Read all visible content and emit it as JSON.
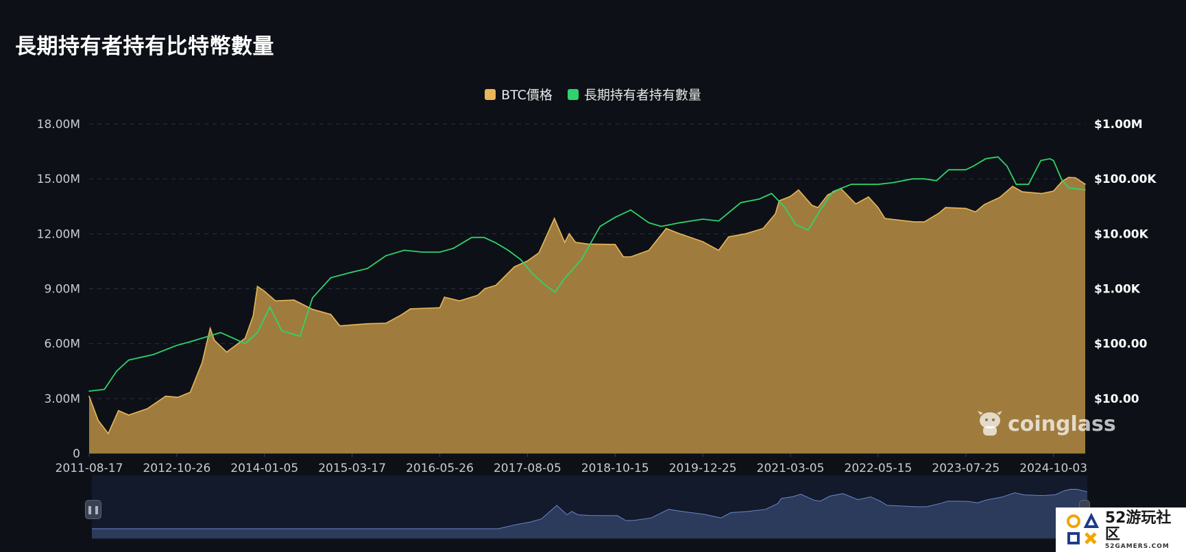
{
  "page": {
    "title": "長期持有者持有比特幣數量"
  },
  "legend": [
    {
      "label": "BTC價格",
      "color": "#e8b75a"
    },
    {
      "label": "長期持有者持有數量",
      "color": "#2fd36b"
    }
  ],
  "watermark": {
    "text": "coinglass",
    "icon": "mascot-icon"
  },
  "badge": {
    "main": "52游玩社区",
    "sub": "52GAMERS.COM",
    "icon": "shapes-logo-icon"
  },
  "chart_data": {
    "type": "area",
    "title": "長期持有者持有比特幣數量",
    "x_tick_labels": [
      "2011-08-17",
      "2012-10-26",
      "2014-01-05",
      "2015-03-17",
      "2016-05-26",
      "2017-08-05",
      "2018-10-15",
      "2019-12-25",
      "2021-03-05",
      "2022-05-15",
      "2023-07-25",
      "2024-10-03"
    ],
    "x_range": [
      "2011-08-17",
      "2025-03-10"
    ],
    "y_left": {
      "ticks": [
        "0",
        "3.00M",
        "6.00M",
        "9.00M",
        "12.00M",
        "15.00M",
        "18.00M"
      ],
      "range": [
        0,
        18000000
      ]
    },
    "y_right": {
      "scale": "log",
      "ticks": [
        "$10.00",
        "$100.00",
        "$1.00K",
        "$10.00K",
        "$100.00K",
        "$1.00M"
      ],
      "range": [
        1,
        1000000
      ]
    },
    "grid": true,
    "legend_position": "top-center",
    "series": [
      {
        "name": "BTC價格",
        "axis": "right",
        "style": "area",
        "color": "#e8b75a",
        "points": [
          [
            "2011-08-17",
            11
          ],
          [
            "2011-10-01",
            4
          ],
          [
            "2011-11-20",
            2.3
          ],
          [
            "2012-01-10",
            6
          ],
          [
            "2012-03-01",
            5
          ],
          [
            "2012-06-01",
            6.5
          ],
          [
            "2012-09-01",
            11
          ],
          [
            "2012-11-01",
            10.5
          ],
          [
            "2013-01-01",
            13
          ],
          [
            "2013-03-01",
            45
          ],
          [
            "2013-04-10",
            190
          ],
          [
            "2013-05-01",
            115
          ],
          [
            "2013-07-01",
            70
          ],
          [
            "2013-10-01",
            125
          ],
          [
            "2013-11-10",
            320
          ],
          [
            "2013-12-01",
            1100
          ],
          [
            "2014-01-05",
            900
          ],
          [
            "2014-03-01",
            600
          ],
          [
            "2014-06-01",
            620
          ],
          [
            "2014-09-01",
            420
          ],
          [
            "2014-12-01",
            340
          ],
          [
            "2015-01-15",
            210
          ],
          [
            "2015-06-01",
            230
          ],
          [
            "2015-09-01",
            235
          ],
          [
            "2015-11-15",
            330
          ],
          [
            "2016-01-01",
            430
          ],
          [
            "2016-05-26",
            450
          ],
          [
            "2016-06-18",
            700
          ],
          [
            "2016-09-01",
            600
          ],
          [
            "2016-12-01",
            760
          ],
          [
            "2017-01-05",
            1000
          ],
          [
            "2017-03-01",
            1150
          ],
          [
            "2017-06-01",
            2500
          ],
          [
            "2017-08-05",
            3200
          ],
          [
            "2017-10-01",
            4500
          ],
          [
            "2017-12-17",
            19000
          ],
          [
            "2018-02-06",
            7000
          ],
          [
            "2018-03-01",
            10000
          ],
          [
            "2018-04-01",
            7000
          ],
          [
            "2018-06-01",
            6500
          ],
          [
            "2018-10-15",
            6400
          ],
          [
            "2018-11-25",
            3800
          ],
          [
            "2019-01-01",
            3800
          ],
          [
            "2019-04-01",
            5000
          ],
          [
            "2019-06-26",
            12500
          ],
          [
            "2019-09-01",
            10000
          ],
          [
            "2019-12-25",
            7200
          ],
          [
            "2020-03-13",
            5000
          ],
          [
            "2020-05-01",
            8800
          ],
          [
            "2020-07-25",
            10000
          ],
          [
            "2020-10-20",
            12500
          ],
          [
            "2020-12-20",
            23000
          ],
          [
            "2021-01-08",
            40000
          ],
          [
            "2021-03-05",
            48000
          ],
          [
            "2021-04-14",
            63000
          ],
          [
            "2021-06-20",
            33000
          ],
          [
            "2021-07-20",
            30000
          ],
          [
            "2021-09-06",
            51000
          ],
          [
            "2021-11-10",
            67000
          ],
          [
            "2022-01-24",
            35000
          ],
          [
            "2022-03-28",
            47000
          ],
          [
            "2022-05-15",
            30000
          ],
          [
            "2022-06-18",
            19000
          ],
          [
            "2022-11-10",
            16500
          ],
          [
            "2022-12-31",
            16500
          ],
          [
            "2023-03-15",
            24000
          ],
          [
            "2023-04-15",
            30000
          ],
          [
            "2023-07-25",
            29000
          ],
          [
            "2023-09-11",
            25000
          ],
          [
            "2023-10-25",
            34000
          ],
          [
            "2024-01-10",
            46000
          ],
          [
            "2024-03-14",
            73000
          ],
          [
            "2024-05-01",
            58000
          ],
          [
            "2024-08-05",
            54000
          ],
          [
            "2024-10-03",
            60000
          ],
          [
            "2024-11-15",
            90000
          ],
          [
            "2024-12-17",
            106000
          ],
          [
            "2025-01-20",
            105000
          ],
          [
            "2025-03-10",
            80000
          ]
        ]
      },
      {
        "name": "長期持有者持有數量",
        "axis": "left",
        "style": "line",
        "color": "#2fd36b",
        "points": [
          [
            "2011-08-17",
            3400000
          ],
          [
            "2011-11-01",
            3500000
          ],
          [
            "2012-01-01",
            4500000
          ],
          [
            "2012-03-01",
            5100000
          ],
          [
            "2012-07-01",
            5400000
          ],
          [
            "2012-10-26",
            5900000
          ],
          [
            "2013-01-01",
            6100000
          ],
          [
            "2013-06-01",
            6600000
          ],
          [
            "2013-08-01",
            6300000
          ],
          [
            "2013-10-01",
            6000000
          ],
          [
            "2013-12-01",
            6600000
          ],
          [
            "2014-01-05",
            7400000
          ],
          [
            "2014-02-01",
            8000000
          ],
          [
            "2014-04-01",
            6700000
          ],
          [
            "2014-07-01",
            6400000
          ],
          [
            "2014-09-01",
            8500000
          ],
          [
            "2014-12-01",
            9600000
          ],
          [
            "2015-03-17",
            9900000
          ],
          [
            "2015-06-01",
            10100000
          ],
          [
            "2015-09-01",
            10800000
          ],
          [
            "2015-12-01",
            11100000
          ],
          [
            "2016-03-01",
            11000000
          ],
          [
            "2016-05-26",
            11000000
          ],
          [
            "2016-08-01",
            11200000
          ],
          [
            "2016-11-01",
            11800000
          ],
          [
            "2017-01-01",
            11800000
          ],
          [
            "2017-03-01",
            11500000
          ],
          [
            "2017-05-01",
            11100000
          ],
          [
            "2017-07-01",
            10600000
          ],
          [
            "2017-09-01",
            9800000
          ],
          [
            "2017-11-01",
            9200000
          ],
          [
            "2017-12-20",
            8800000
          ],
          [
            "2018-02-01",
            9500000
          ],
          [
            "2018-05-01",
            10600000
          ],
          [
            "2018-08-01",
            12400000
          ],
          [
            "2018-10-15",
            12900000
          ],
          [
            "2019-01-01",
            13300000
          ],
          [
            "2019-04-01",
            12600000
          ],
          [
            "2019-06-01",
            12400000
          ],
          [
            "2019-09-01",
            12600000
          ],
          [
            "2019-12-25",
            12800000
          ],
          [
            "2020-03-13",
            12700000
          ],
          [
            "2020-07-01",
            13700000
          ],
          [
            "2020-10-01",
            13900000
          ],
          [
            "2020-12-01",
            14200000
          ],
          [
            "2021-02-01",
            13500000
          ],
          [
            "2021-04-01",
            12500000
          ],
          [
            "2021-06-01",
            12200000
          ],
          [
            "2021-08-01",
            13300000
          ],
          [
            "2021-10-01",
            14300000
          ],
          [
            "2022-01-01",
            14700000
          ],
          [
            "2022-05-15",
            14700000
          ],
          [
            "2022-08-01",
            14800000
          ],
          [
            "2022-11-01",
            15000000
          ],
          [
            "2023-01-01",
            15000000
          ],
          [
            "2023-03-01",
            14900000
          ],
          [
            "2023-05-01",
            15500000
          ],
          [
            "2023-07-25",
            15500000
          ],
          [
            "2023-09-01",
            15700000
          ],
          [
            "2023-11-01",
            16100000
          ],
          [
            "2024-01-01",
            16200000
          ],
          [
            "2024-02-15",
            15700000
          ],
          [
            "2024-04-01",
            14700000
          ],
          [
            "2024-06-01",
            14700000
          ],
          [
            "2024-08-01",
            16000000
          ],
          [
            "2024-09-15",
            16100000
          ],
          [
            "2024-10-03",
            16000000
          ],
          [
            "2024-11-15",
            14900000
          ],
          [
            "2024-12-20",
            14500000
          ],
          [
            "2025-03-10",
            14400000
          ]
        ]
      }
    ]
  }
}
